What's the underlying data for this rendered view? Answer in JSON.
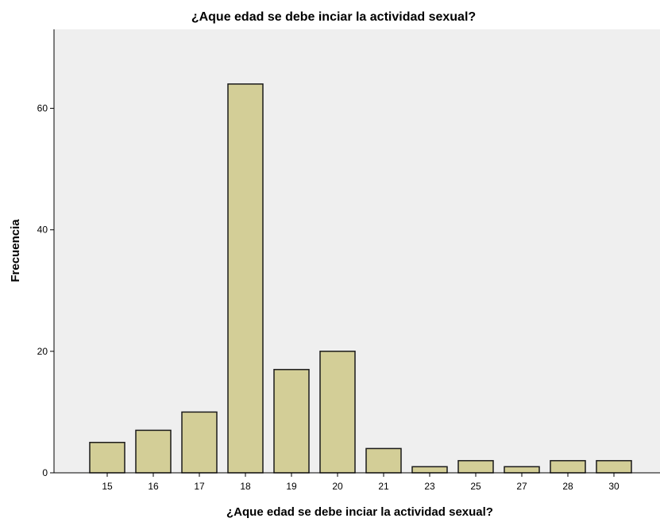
{
  "chart_data": {
    "type": "bar",
    "title": "¿Aque edad se debe inciar la actividad sexual?",
    "xlabel": "¿Aque edad se debe inciar la actividad sexual?",
    "ylabel": "Frecuencia",
    "categories": [
      "15",
      "16",
      "17",
      "18",
      "19",
      "20",
      "21",
      "23",
      "25",
      "27",
      "28",
      "30"
    ],
    "values": [
      5,
      7,
      10,
      64,
      17,
      20,
      4,
      1,
      2,
      1,
      2,
      2
    ],
    "ylim": [
      0,
      73
    ],
    "yticks": [
      0,
      20,
      40,
      60
    ],
    "grid": false,
    "legend": "none",
    "colors": {
      "bar_fill": "#d3ce97",
      "bar_stroke": "#1a1a1a",
      "plot_background": "#efefef",
      "axis": "#000000"
    }
  }
}
